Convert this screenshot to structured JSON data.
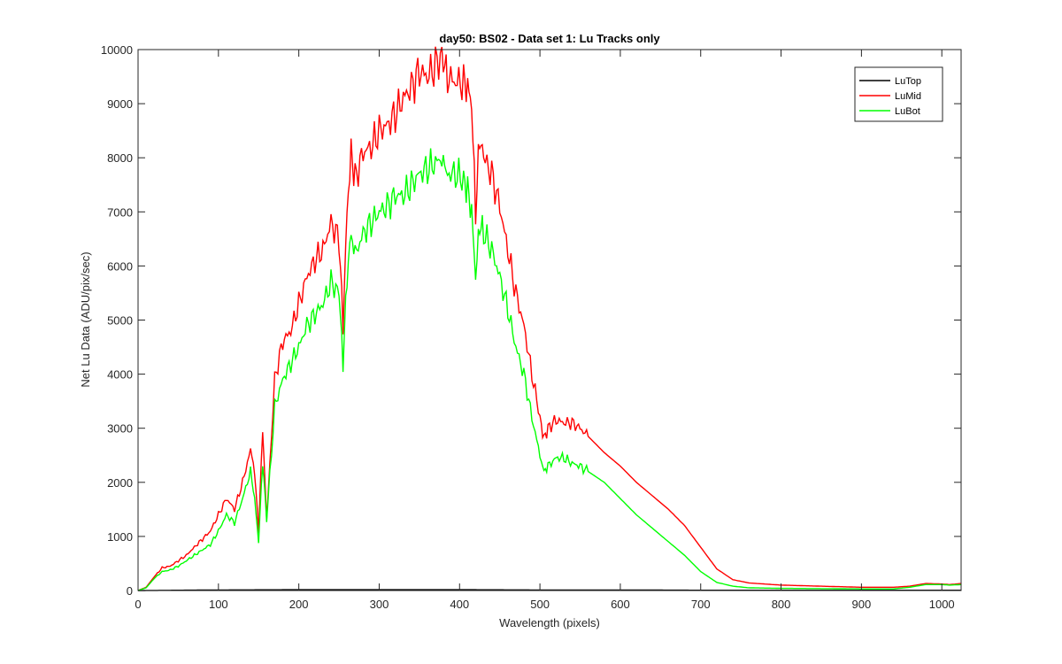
{
  "chart_data": {
    "type": "line",
    "title": "day50: BS02 - Data set 1: Lu Tracks only",
    "xlabel": "Wavelength (pixels)",
    "ylabel": "Net Lu Data (ADU/pix/sec)",
    "xlim": [
      0,
      1024
    ],
    "ylim": [
      0,
      10000
    ],
    "xticks": [
      0,
      100,
      200,
      300,
      400,
      500,
      600,
      700,
      800,
      900,
      1000
    ],
    "yticks": [
      0,
      1000,
      2000,
      3000,
      4000,
      5000,
      6000,
      7000,
      8000,
      9000,
      10000
    ],
    "xtick_labels": [
      "0",
      "100",
      "200",
      "300",
      "400",
      "500",
      "600",
      "700",
      "800",
      "900",
      "1000"
    ],
    "ytick_labels": [
      "0",
      "1000",
      "2000",
      "3000",
      "4000",
      "5000",
      "6000",
      "7000",
      "8000",
      "9000",
      "10000"
    ],
    "grid": false,
    "legend_position": "top-right",
    "series": [
      {
        "name": "LuTop",
        "color": "#000000",
        "x": [
          0,
          100,
          200,
          300,
          400,
          500,
          600,
          700,
          800,
          900,
          1024
        ],
        "y": [
          0,
          10,
          15,
          15,
          15,
          10,
          10,
          5,
          5,
          5,
          5
        ]
      },
      {
        "name": "LuMid",
        "color": "#ff0000",
        "x": [
          0,
          10,
          20,
          30,
          40,
          50,
          60,
          70,
          80,
          90,
          100,
          110,
          120,
          130,
          140,
          145,
          150,
          155,
          160,
          170,
          180,
          190,
          200,
          210,
          220,
          230,
          240,
          250,
          255,
          260,
          265,
          270,
          280,
          290,
          300,
          310,
          320,
          330,
          340,
          350,
          360,
          370,
          378,
          385,
          395,
          405,
          410,
          415,
          420,
          425,
          430,
          440,
          450,
          460,
          470,
          480,
          490,
          500,
          505,
          510,
          520,
          530,
          540,
          550,
          560,
          570,
          580,
          600,
          620,
          640,
          660,
          680,
          700,
          720,
          740,
          760,
          800,
          850,
          900,
          940,
          960,
          980,
          1000,
          1010,
          1024
        ],
        "y": [
          0,
          60,
          250,
          420,
          450,
          550,
          650,
          800,
          950,
          1100,
          1400,
          1700,
          1500,
          2000,
          2600,
          2200,
          1100,
          3000,
          1300,
          3900,
          4600,
          4800,
          5300,
          5800,
          6100,
          6300,
          6800,
          6500,
          4900,
          7000,
          8100,
          7600,
          8100,
          8200,
          8500,
          8600,
          8800,
          9100,
          9300,
          9600,
          9500,
          9700,
          9900,
          9500,
          9400,
          9400,
          9300,
          9000,
          7000,
          8400,
          8000,
          7700,
          7100,
          6300,
          5500,
          4900,
          4000,
          3200,
          2800,
          3000,
          3150,
          3100,
          3100,
          3000,
          2850,
          2700,
          2550,
          2300,
          2000,
          1750,
          1500,
          1200,
          800,
          400,
          200,
          140,
          100,
          80,
          60,
          60,
          80,
          130,
          120,
          110,
          130
        ]
      },
      {
        "name": "LuBot",
        "color": "#00ff00",
        "x": [
          0,
          10,
          20,
          30,
          40,
          50,
          60,
          70,
          80,
          90,
          100,
          110,
          120,
          130,
          140,
          145,
          150,
          155,
          160,
          170,
          180,
          190,
          200,
          210,
          220,
          230,
          240,
          250,
          255,
          260,
          265,
          270,
          280,
          290,
          300,
          310,
          320,
          330,
          340,
          350,
          360,
          370,
          378,
          385,
          395,
          405,
          410,
          415,
          420,
          425,
          430,
          440,
          450,
          460,
          470,
          480,
          490,
          500,
          505,
          510,
          520,
          530,
          540,
          550,
          560,
          570,
          580,
          600,
          620,
          640,
          660,
          680,
          700,
          720,
          740,
          760,
          800,
          850,
          900,
          940,
          960,
          980,
          1000,
          1010,
          1024
        ],
        "y": [
          0,
          50,
          220,
          350,
          380,
          450,
          550,
          650,
          750,
          850,
          1100,
          1400,
          1250,
          1700,
          2200,
          1700,
          900,
          2400,
          1300,
          3400,
          3900,
          4200,
          4500,
          4900,
          5100,
          5300,
          5700,
          5500,
          4200,
          5800,
          6600,
          6200,
          6600,
          6800,
          7000,
          7100,
          7300,
          7300,
          7500,
          7700,
          7800,
          7900,
          8000,
          7700,
          7700,
          7600,
          7400,
          7000,
          5800,
          6800,
          6600,
          6300,
          5800,
          5200,
          4500,
          4000,
          3200,
          2500,
          2200,
          2300,
          2450,
          2450,
          2350,
          2300,
          2200,
          2100,
          2000,
          1700,
          1400,
          1150,
          900,
          650,
          350,
          150,
          80,
          50,
          40,
          35,
          30,
          30,
          60,
          110,
          110,
          100,
          110
        ]
      }
    ]
  }
}
